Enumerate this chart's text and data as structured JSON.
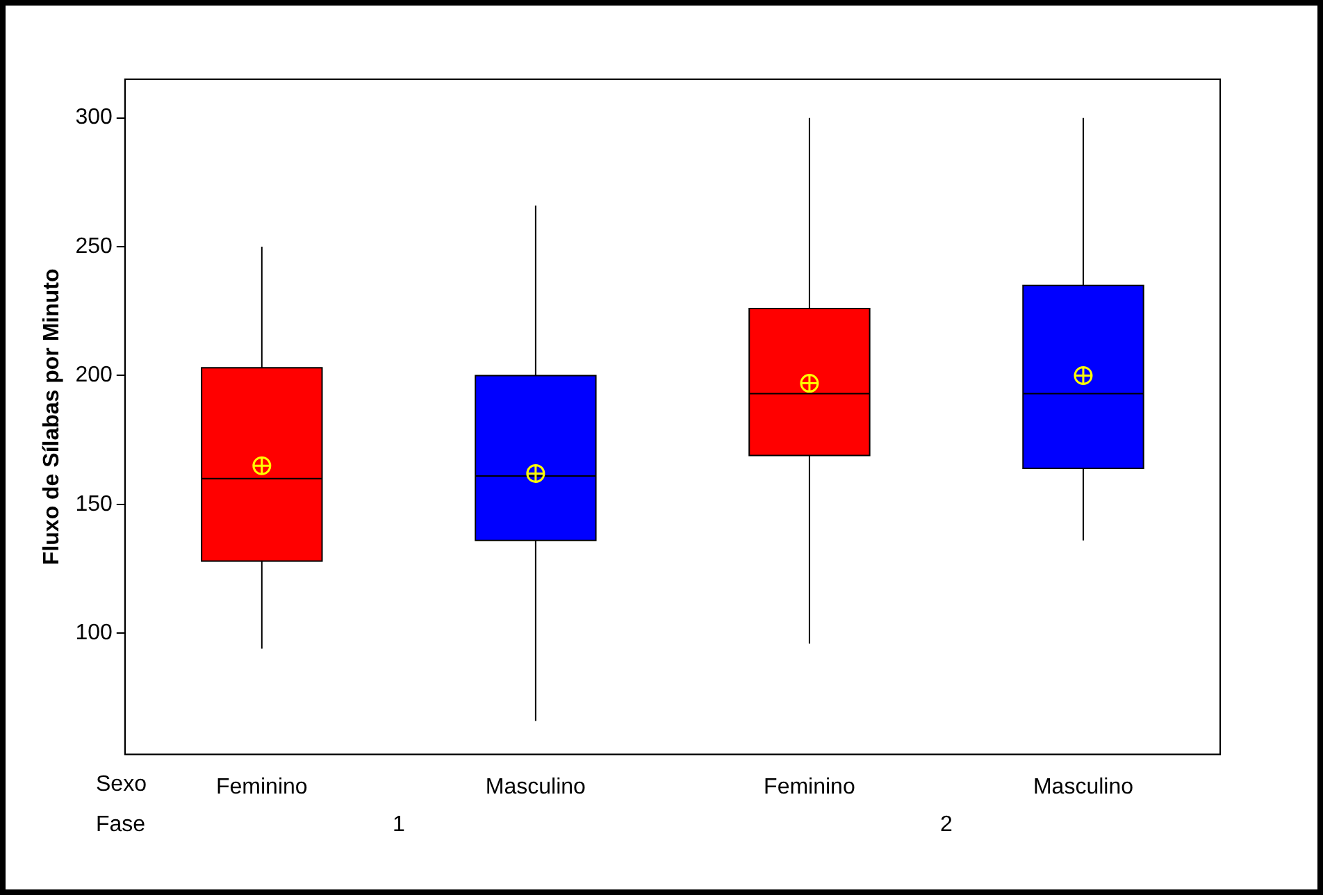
{
  "chart_data": {
    "type": "box",
    "ylabel": "Fluxo de Sílabas por Minuto",
    "categories": [
      "Feminino",
      "Masculino",
      "Feminino",
      "Masculino"
    ],
    "colors": [
      "#ff0000",
      "#0000ff",
      "#ff0000",
      "#0000ff"
    ],
    "boxes": [
      {
        "low": 94,
        "q1": 128,
        "median": 160,
        "q3": 203,
        "high": 250,
        "mean": 165
      },
      {
        "low": 66,
        "q1": 136,
        "median": 161,
        "q3": 200,
        "high": 266,
        "mean": 162
      },
      {
        "low": 96,
        "q1": 169,
        "median": 193,
        "q3": 226,
        "high": 300,
        "mean": 197
      },
      {
        "low": 136,
        "q1": 164,
        "median": 193,
        "q3": 235,
        "high": 300,
        "mean": 200
      }
    ],
    "ylim": [
      53,
      315
    ],
    "yticks": [
      100,
      150,
      200,
      250,
      300
    ],
    "grid": false,
    "legend": false,
    "annotations": [
      "Sexo",
      "Fase",
      "1",
      "2"
    ]
  }
}
